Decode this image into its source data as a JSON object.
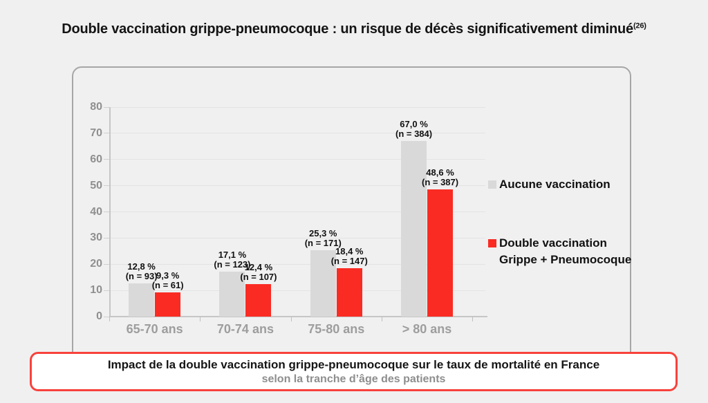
{
  "title": {
    "text": "Double vaccination grippe-pneumocoque : un risque de décès significativement diminué",
    "reference": "(26)"
  },
  "colors": {
    "background": "#f0f0f0",
    "panel_border": "#a6a6a6",
    "bar_gray": "#d9d9d9",
    "bar_red": "#fa2b23",
    "caption_border": "#f8423c",
    "axis_line": "#c6c6c6",
    "gridline": "#e3e3e3",
    "axis_text": "#8f8f8f",
    "label_text": "#111111",
    "caption_subtitle": "#8e8e8e"
  },
  "chart_data": {
    "type": "bar",
    "title": "",
    "xlabel": "",
    "ylabel": "",
    "categories": [
      "65-70 ans",
      "70-74 ans",
      "75-80 ans",
      "> 80 ans"
    ],
    "series": [
      {
        "name": "Aucune vaccination",
        "legend_lines": [
          "Aucune vaccination"
        ],
        "color": "#d9d9d9",
        "values": [
          12.8,
          17.1,
          25.3,
          67.0
        ],
        "point_labels": [
          [
            "12,8 %",
            "(n = 93)"
          ],
          [
            "17,1 %",
            "(n = 123)"
          ],
          [
            "25,3 %",
            "(n = 171)"
          ],
          [
            "67,0 %",
            "(n = 384)"
          ]
        ]
      },
      {
        "name": "Double vaccination Grippe + Pneumocoque",
        "legend_lines": [
          "Double vaccination",
          "Grippe + Pneumocoque"
        ],
        "color": "#fa2b23",
        "values": [
          9.3,
          12.4,
          18.4,
          48.6
        ],
        "point_labels": [
          [
            "9,3 %",
            "(n = 61)"
          ],
          [
            "12,4 %",
            "(n = 107)"
          ],
          [
            "18,4 %",
            "(n = 147)"
          ],
          [
            "48,6 %",
            "(n = 387)"
          ]
        ]
      }
    ],
    "ylim": [
      0,
      80
    ],
    "yticks": [
      0,
      10,
      20,
      30,
      40,
      50,
      60,
      70,
      80
    ],
    "grid": true,
    "legend_position": "right",
    "value_unit": "%"
  },
  "caption": {
    "line1": "Impact de la double vaccination grippe-pneumocoque sur le taux de mortalité en France",
    "line2": "selon la tranche d’âge des patients"
  }
}
